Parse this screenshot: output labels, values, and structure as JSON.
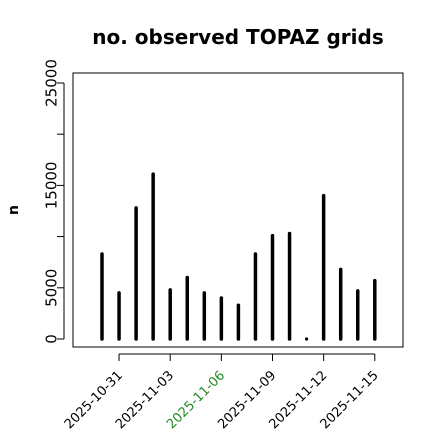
{
  "chart_data": {
    "type": "bar",
    "title": "no. observed TOPAZ grids",
    "xlabel": "",
    "ylabel": "n",
    "ylim": [
      0,
      25000
    ],
    "yticks": [
      0,
      5000,
      15000,
      25000
    ],
    "x": [
      "2025-10-30",
      "2025-10-31",
      "2025-11-01",
      "2025-11-02",
      "2025-11-03",
      "2025-11-04",
      "2025-11-05",
      "2025-11-06",
      "2025-11-07",
      "2025-11-08",
      "2025-11-09",
      "2025-11-10",
      "2025-11-11",
      "2025-11-12",
      "2025-11-13",
      "2025-11-14",
      "2025-11-15"
    ],
    "values": [
      8300,
      4500,
      12800,
      16100,
      4800,
      6000,
      4500,
      4000,
      3300,
      8300,
      10100,
      10300,
      0,
      14000,
      6800,
      4700,
      5700
    ],
    "xtick_labels": [
      "2025-10-31",
      "2025-11-03",
      "2025-11-06",
      "2025-11-09",
      "2025-11-12",
      "2025-11-15"
    ],
    "xtick_colors": [
      "#000000",
      "#000000",
      "#228b22",
      "#000000",
      "#000000",
      "#000000"
    ],
    "bar_color": "#000000",
    "grid": false
  }
}
